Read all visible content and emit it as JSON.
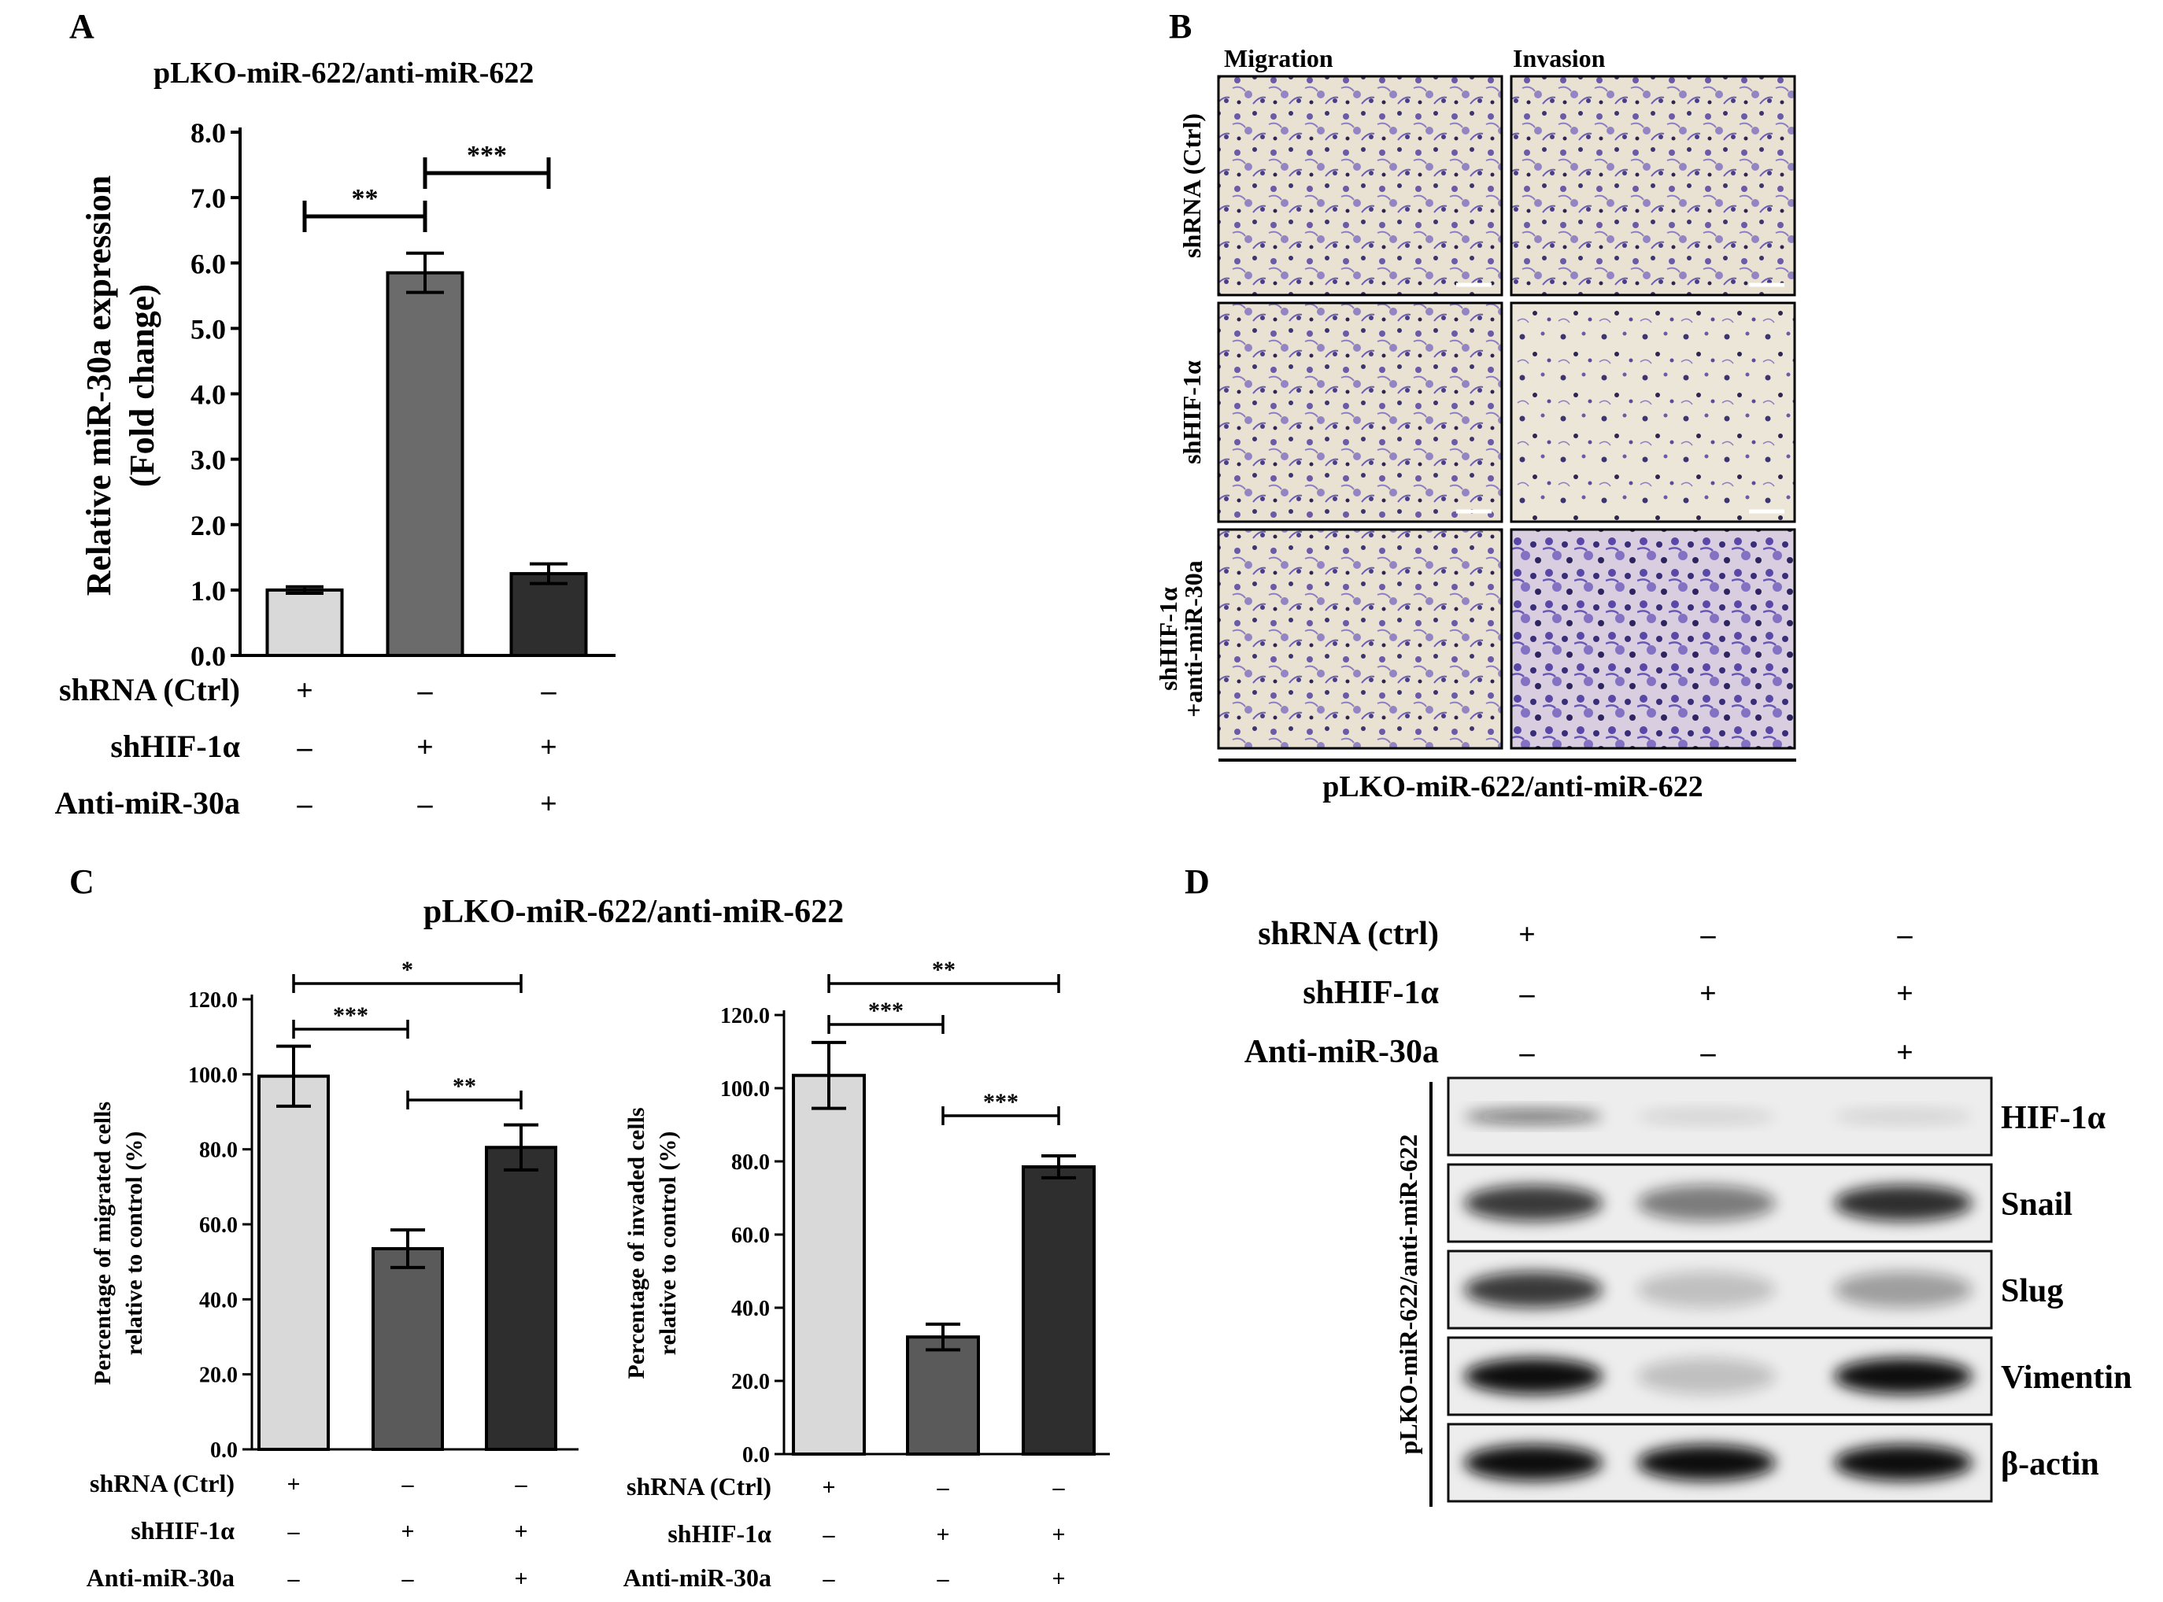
{
  "panelA": {
    "letter": "A",
    "title": "pLKO-miR-622/anti-miR-622",
    "ylabel_line1": "Relative miR-30a expression",
    "ylabel_line2": "(Fold change)",
    "row_labels": [
      "shRNA (Ctrl)",
      "shHIF-1α",
      "Anti-miR-30a"
    ],
    "signs": [
      [
        "+",
        "–",
        "–"
      ],
      [
        "–",
        "+",
        "+"
      ],
      [
        "–",
        "–",
        "+"
      ]
    ],
    "sig": [
      {
        "from": 0,
        "to": 1,
        "label": "**"
      },
      {
        "from": 1,
        "to": 2,
        "label": "***"
      }
    ]
  },
  "panelB": {
    "letter": "B",
    "col_headers": [
      "Migration",
      "Invasion"
    ],
    "row_labels": [
      "shRNA (Ctrl)",
      "shHIF-1α",
      "shHIF-1α",
      "+anti-miR-30a"
    ],
    "footer": "pLKO-miR-622/anti-miR-622"
  },
  "panelC": {
    "letter": "C",
    "title": "pLKO-miR-622/anti-miR-622",
    "left": {
      "ylabel_line1": "Percentage of migrated cells",
      "ylabel_line2": "relative to control (%)",
      "row_labels": [
        "shRNA (Ctrl)",
        "shHIF-1α",
        "Anti-miR-30a"
      ],
      "signs": [
        [
          "+",
          "–",
          "–"
        ],
        [
          "–",
          "+",
          "+"
        ],
        [
          "–",
          "–",
          "+"
        ]
      ],
      "sig": [
        {
          "from": 0,
          "to": 2,
          "label": "*"
        },
        {
          "from": 0,
          "to": 1,
          "label": "***"
        },
        {
          "from": 1,
          "to": 2,
          "label": "**"
        }
      ]
    },
    "right": {
      "ylabel_line1": "Percentage of invaded cells",
      "ylabel_line2": "relative to control (%)",
      "row_labels": [
        "shRNA (Ctrl)",
        "shHIF-1α",
        "Anti-miR-30a"
      ],
      "signs": [
        [
          "+",
          "–",
          "–"
        ],
        [
          "–",
          "+",
          "+"
        ],
        [
          "–",
          "–",
          "+"
        ]
      ],
      "sig": [
        {
          "from": 0,
          "to": 2,
          "label": "**"
        },
        {
          "from": 0,
          "to": 1,
          "label": "***"
        },
        {
          "from": 1,
          "to": 2,
          "label": "***"
        }
      ]
    }
  },
  "panelD": {
    "letter": "D",
    "row_labels": [
      "shRNA (ctrl)",
      "shHIF-1α",
      "Anti-miR-30a"
    ],
    "signs": [
      [
        "+",
        "–",
        "–"
      ],
      [
        "–",
        "+",
        "+"
      ],
      [
        "–",
        "–",
        "+"
      ]
    ],
    "side_label": "pLKO-miR-622/anti-miR-622",
    "blots": [
      {
        "name": "HIF-1α",
        "intensity": [
          0.55,
          0.12,
          0.12
        ]
      },
      {
        "name": "Snail",
        "intensity": [
          0.8,
          0.5,
          0.85
        ]
      },
      {
        "name": "Slug",
        "intensity": [
          0.8,
          0.2,
          0.35
        ]
      },
      {
        "name": "Vimentin",
        "intensity": [
          1.0,
          0.2,
          1.0
        ]
      },
      {
        "name": "β-actin",
        "intensity": [
          1.0,
          1.0,
          1.0
        ]
      }
    ]
  },
  "chart_data": [
    {
      "type": "bar",
      "panel": "A",
      "title": "pLKO-miR-622/anti-miR-622",
      "ylabel": "Relative miR-30a expression (Fold change)",
      "ylim": [
        0,
        8
      ],
      "yticks": [
        "0.0",
        "1.0",
        "2.0",
        "3.0",
        "4.0",
        "5.0",
        "6.0",
        "7.0",
        "8.0"
      ],
      "values": [
        1.0,
        5.85,
        1.25
      ],
      "errors": [
        0.05,
        0.3,
        0.15
      ],
      "colors": [
        "#d9d9d9",
        "#6b6b6b",
        "#2e2e2e"
      ]
    },
    {
      "type": "bar",
      "panel": "C-left",
      "ylabel": "Percentage of migrated cells relative to control (%)",
      "ylim": [
        0,
        120
      ],
      "yticks": [
        "0.0",
        "20.0",
        "40.0",
        "60.0",
        "80.0",
        "100.0",
        "120.0"
      ],
      "values": [
        99.5,
        53.5,
        80.5
      ],
      "errors": [
        8.0,
        5.0,
        6.0
      ],
      "colors": [
        "#d9d9d9",
        "#5a5a5a",
        "#2e2e2e"
      ]
    },
    {
      "type": "bar",
      "panel": "C-right",
      "ylabel": "Percentage of invaded cells relative to control (%)",
      "ylim": [
        0,
        120
      ],
      "yticks": [
        "0.0",
        "20.0",
        "40.0",
        "60.0",
        "80.0",
        "100.0",
        "120.0"
      ],
      "values": [
        103.5,
        32.0,
        78.5
      ],
      "errors": [
        9.0,
        3.5,
        3.0
      ],
      "colors": [
        "#d9d9d9",
        "#5a5a5a",
        "#2e2e2e"
      ]
    }
  ]
}
